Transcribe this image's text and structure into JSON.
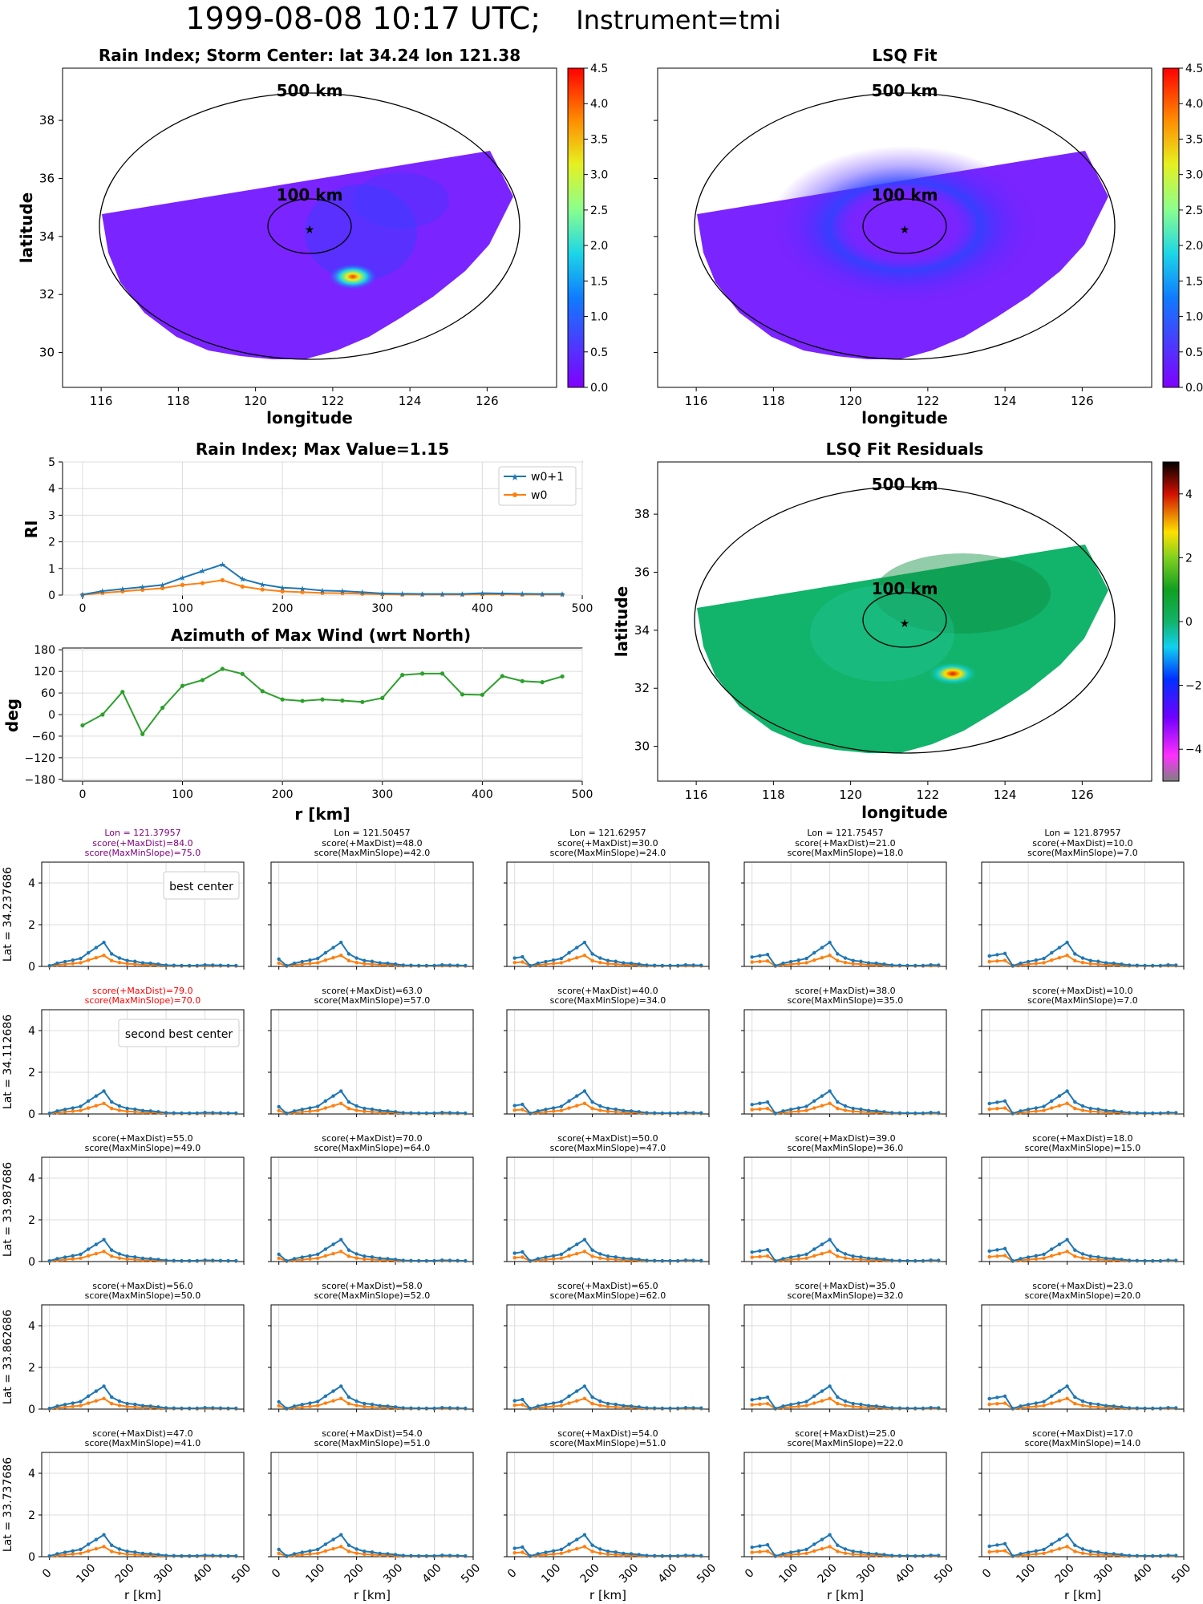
{
  "page": {
    "suptitle_main": "1999-08-08 10:17 UTC;",
    "suptitle_sub": "Instrument=tmi"
  },
  "maps": {
    "rain_index": {
      "title": "Rain Index; Storm Center: lat 34.24 lon 121.38",
      "xlabel": "longitude",
      "ylabel": "latitude"
    },
    "lsq_fit": {
      "title": "LSQ Fit",
      "xlabel": "longitude"
    },
    "residuals": {
      "title": "LSQ Fit Residuals",
      "xlabel": "longitude",
      "ylabel": "latitude"
    },
    "ring_outer_label": "500 km",
    "ring_inner_label": "100 km",
    "colors": {
      "field_background": "#7a24ff",
      "residual_background": "#12b36a",
      "outline": "#000000"
    }
  },
  "profile_labels": {
    "ylabel": "RI",
    "xlabel": "r [km]",
    "series_names": [
      "w0+1",
      "w0"
    ],
    "series_colors": [
      "#1f77b4",
      "#ff7f0e"
    ],
    "azimuth_ylabel": "deg",
    "grid_label_best": "best center",
    "grid_label_second": "second best center",
    "grid_xlabel": "r [km]"
  },
  "chart_data": [
    {
      "type": "heatmap",
      "panel": "rain_index",
      "title": "Rain Index; Storm Center: lat 34.24 lon 121.38",
      "xlabel": "longitude",
      "ylabel": "latitude",
      "xlim": [
        115,
        127.8
      ],
      "ylim": [
        28.8,
        39.8
      ],
      "xticks": [
        116,
        118,
        120,
        122,
        124,
        126
      ],
      "yticks": [
        30,
        32,
        34,
        36,
        38
      ],
      "storm_center": {
        "lat": 34.24,
        "lon": 121.38
      },
      "rings_km": [
        500,
        100
      ],
      "peak_hotspot": {
        "lat": 32.45,
        "lon": 122.5
      },
      "colorbar": {
        "min": 0.0,
        "max": 4.5,
        "ticks": [
          "0.0",
          "0.5",
          "1.0",
          "1.5",
          "2.0",
          "2.5",
          "3.0",
          "3.5",
          "4.0",
          "4.5"
        ],
        "colormap": "rainbow"
      }
    },
    {
      "type": "heatmap",
      "panel": "lsq_fit",
      "title": "LSQ Fit",
      "xlabel": "longitude",
      "xlim": [
        115,
        127.8
      ],
      "ylim": [
        28.8,
        39.8
      ],
      "xticks": [
        116,
        118,
        120,
        122,
        124,
        126
      ],
      "yticks": [
        30,
        32,
        34,
        36,
        38
      ],
      "storm_center": {
        "lat": 34.24,
        "lon": 121.38
      },
      "rings_km": [
        500,
        100
      ],
      "colorbar": {
        "min": 0.0,
        "max": 4.5,
        "ticks": [
          "0.0",
          "0.5",
          "1.0",
          "1.5",
          "2.0",
          "2.5",
          "3.0",
          "3.5",
          "4.0",
          "4.5"
        ],
        "colormap": "rainbow"
      }
    },
    {
      "type": "line",
      "panel": "rain_index_profile",
      "title": "Rain Index; Max Value=1.15",
      "ylabel": "RI",
      "xlim": [
        -20,
        500
      ],
      "ylim": [
        0,
        5
      ],
      "xticks": [
        0,
        100,
        200,
        300,
        400,
        500
      ],
      "yticks": [
        0,
        1,
        2,
        3,
        4,
        5
      ],
      "legend": "top-right",
      "x": [
        0,
        20,
        40,
        60,
        80,
        100,
        120,
        140,
        160,
        180,
        200,
        220,
        240,
        260,
        280,
        300,
        320,
        340,
        360,
        380,
        400,
        420,
        440,
        460,
        480
      ],
      "series": [
        {
          "name": "w0+1",
          "marker": "star",
          "values": [
            0.02,
            0.15,
            0.23,
            0.3,
            0.38,
            0.65,
            0.9,
            1.15,
            0.6,
            0.4,
            0.28,
            0.24,
            0.17,
            0.15,
            0.11,
            0.06,
            0.05,
            0.04,
            0.04,
            0.04,
            0.07,
            0.06,
            0.05,
            0.04,
            0.04
          ]
        },
        {
          "name": "w0",
          "marker": "dot",
          "values": [
            0.01,
            0.08,
            0.14,
            0.2,
            0.26,
            0.38,
            0.45,
            0.56,
            0.32,
            0.21,
            0.14,
            0.11,
            0.08,
            0.07,
            0.05,
            0.03,
            0.02,
            0.02,
            0.02,
            0.02,
            0.03,
            0.03,
            0.02,
            0.02,
            0.02
          ]
        }
      ]
    },
    {
      "type": "line",
      "panel": "azimuth",
      "title": "Azimuth of Max Wind (wrt North)",
      "xlabel": "r [km]",
      "ylabel": "deg",
      "xlim": [
        -20,
        500
      ],
      "ylim": [
        -185,
        185
      ],
      "xticks": [
        0,
        100,
        200,
        300,
        400,
        500
      ],
      "yticks": [
        180,
        120,
        60,
        0,
        -60,
        -120,
        -180
      ],
      "x": [
        0,
        20,
        40,
        60,
        80,
        100,
        120,
        140,
        160,
        180,
        200,
        220,
        240,
        260,
        280,
        300,
        320,
        340,
        360,
        380,
        400,
        420,
        440,
        460,
        480
      ],
      "series": [
        {
          "values": [
            -30,
            0,
            63,
            -54,
            19,
            80,
            96,
            127,
            113,
            65,
            42,
            38,
            42,
            39,
            35,
            46,
            110,
            114,
            114,
            56,
            55,
            107,
            93,
            90,
            106
          ]
        }
      ]
    },
    {
      "type": "heatmap",
      "panel": "residuals",
      "title": "LSQ Fit Residuals",
      "xlabel": "longitude",
      "ylabel": "latitude",
      "xlim": [
        115,
        127.8
      ],
      "ylim": [
        28.8,
        39.8
      ],
      "xticks": [
        116,
        118,
        120,
        122,
        124,
        126
      ],
      "yticks": [
        30,
        32,
        34,
        36,
        38
      ],
      "storm_center": {
        "lat": 34.24,
        "lon": 121.38
      },
      "rings_km": [
        500,
        100
      ],
      "peak_hotspot": {
        "lat": 32.4,
        "lon": 122.5
      },
      "colorbar": {
        "min": -5,
        "max": 5,
        "ticks": [
          "4",
          "2",
          "0",
          "−2",
          "−4"
        ],
        "colormap": "gist_ncar_r"
      }
    },
    {
      "type": "line",
      "panel": "center_search_grid",
      "xlabel": "r [km]",
      "ylim": [
        0,
        5
      ],
      "yticks": [
        0,
        2,
        4
      ],
      "xticks": [
        0,
        100,
        200,
        300,
        400,
        500
      ],
      "column_lons": [
        "Lon = 121.37957",
        "Lon = 121.50457",
        "Lon = 121.62957",
        "Lon = 121.75457",
        "Lon = 121.87957"
      ],
      "row_lats": [
        "Lat = 34.237686",
        "Lat = 34.112686",
        "Lat = 33.987686",
        "Lat = 33.862686",
        "Lat = 33.737686"
      ],
      "scores": [
        [
          {
            "max_dist": "84.0",
            "max_min_slope": "75.0"
          },
          {
            "max_dist": "48.0",
            "max_min_slope": "42.0"
          },
          {
            "max_dist": "30.0",
            "max_min_slope": "24.0"
          },
          {
            "max_dist": "21.0",
            "max_min_slope": "18.0"
          },
          {
            "max_dist": "10.0",
            "max_min_slope": "7.0"
          }
        ],
        [
          {
            "max_dist": "79.0",
            "max_min_slope": "70.0"
          },
          {
            "max_dist": "63.0",
            "max_min_slope": "57.0"
          },
          {
            "max_dist": "40.0",
            "max_min_slope": "34.0"
          },
          {
            "max_dist": "38.0",
            "max_min_slope": "35.0"
          },
          {
            "max_dist": "10.0",
            "max_min_slope": "7.0"
          }
        ],
        [
          {
            "max_dist": "55.0",
            "max_min_slope": "49.0"
          },
          {
            "max_dist": "70.0",
            "max_min_slope": "64.0"
          },
          {
            "max_dist": "50.0",
            "max_min_slope": "47.0"
          },
          {
            "max_dist": "39.0",
            "max_min_slope": "36.0"
          },
          {
            "max_dist": "18.0",
            "max_min_slope": "15.0"
          }
        ],
        [
          {
            "max_dist": "56.0",
            "max_min_slope": "50.0"
          },
          {
            "max_dist": "58.0",
            "max_min_slope": "52.0"
          },
          {
            "max_dist": "65.0",
            "max_min_slope": "62.0"
          },
          {
            "max_dist": "35.0",
            "max_min_slope": "32.0"
          },
          {
            "max_dist": "23.0",
            "max_min_slope": "20.0"
          }
        ],
        [
          {
            "max_dist": "47.0",
            "max_min_slope": "41.0"
          },
          {
            "max_dist": "54.0",
            "max_min_slope": "51.0"
          },
          {
            "max_dist": "54.0",
            "max_min_slope": "51.0"
          },
          {
            "max_dist": "25.0",
            "max_min_slope": "22.0"
          },
          {
            "max_dist": "17.0",
            "max_min_slope": "14.0"
          }
        ]
      ],
      "best_cell": [
        0,
        0
      ],
      "second_best_cell": [
        1,
        0
      ],
      "peak_r_km_by_column": [
        140,
        160,
        180,
        200,
        200
      ],
      "peak_value_by_row": [
        1.15,
        1.1,
        1.05,
        1.1,
        1.05
      ],
      "x": [
        0,
        20,
        40,
        60,
        80,
        100,
        120,
        140,
        160,
        180,
        200,
        220,
        240,
        260,
        280,
        300,
        320,
        340,
        360,
        380,
        400,
        420,
        440,
        460,
        480
      ]
    }
  ]
}
